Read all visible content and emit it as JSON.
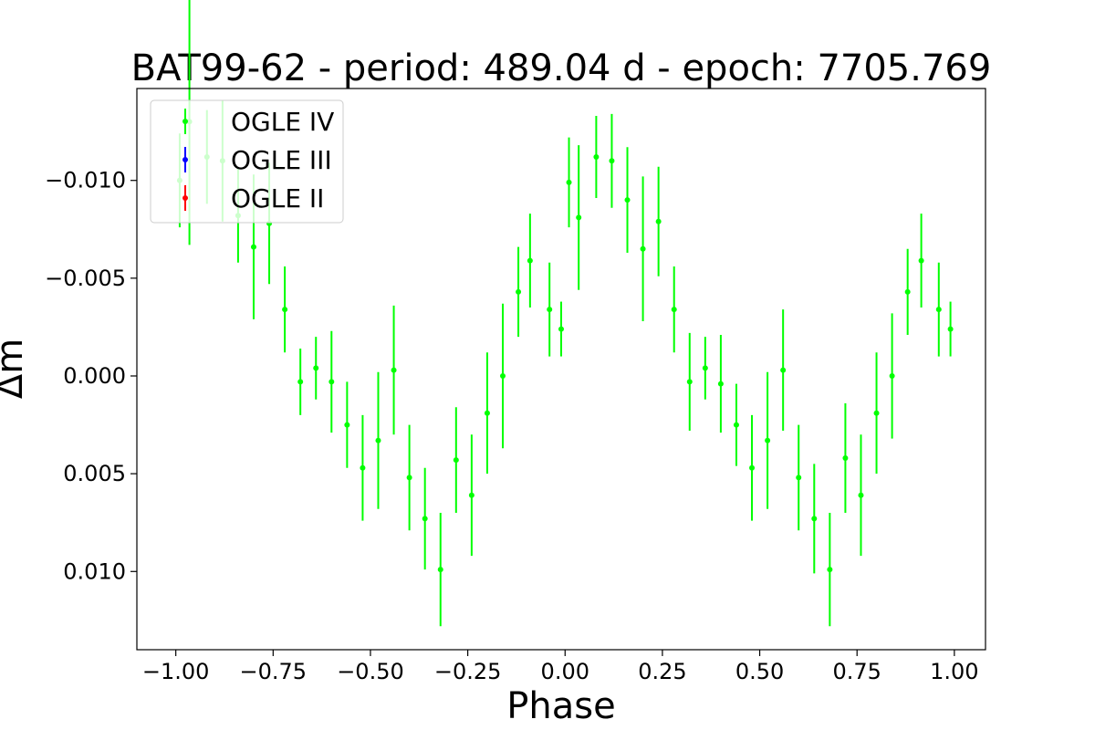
{
  "chart_data": {
    "type": "scatter",
    "title": "BAT99-62 - period: 489.04 d - epoch: 7705.769",
    "xlabel": "Phase",
    "ylabel": "Δm",
    "xlim": [
      -1.1,
      1.08
    ],
    "ylim": [
      0.014,
      -0.0147
    ],
    "y_inverted": true,
    "grid": false,
    "legend_position": "top-left",
    "xticks": [
      -1.0,
      -0.75,
      -0.5,
      -0.25,
      0.0,
      0.25,
      0.5,
      0.75,
      1.0
    ],
    "xtick_labels": [
      "−1.00",
      "−0.75",
      "−0.50",
      "−0.25",
      "0.00",
      "0.25",
      "0.50",
      "0.75",
      "1.00"
    ],
    "yticks": [
      -0.01,
      -0.005,
      0.0,
      0.005,
      0.01
    ],
    "ytick_labels": [
      "−0.010",
      "−0.005",
      "0.000",
      "0.005",
      "0.010"
    ],
    "series": [
      {
        "name": "OGLE IV",
        "color": "#00ff00",
        "x": [
          -0.99,
          -0.965,
          -0.92,
          -0.88,
          -0.84,
          -0.8,
          -0.76,
          -0.72,
          -0.68,
          -0.64,
          -0.6,
          -0.56,
          -0.52,
          -0.48,
          -0.44,
          -0.4,
          -0.36,
          -0.32,
          -0.28,
          -0.24,
          -0.2,
          -0.16,
          -0.12,
          -0.09,
          -0.04,
          -0.01,
          0.01,
          0.035,
          0.08,
          0.12,
          0.16,
          0.2,
          0.24,
          0.28,
          0.32,
          0.36,
          0.4,
          0.44,
          0.48,
          0.52,
          0.56,
          0.6,
          0.64,
          0.68,
          0.72,
          0.76,
          0.8,
          0.84,
          0.88,
          0.915,
          0.96,
          0.99
        ],
        "y": [
          -0.01,
          -0.013,
          -0.0112,
          -0.011,
          -0.0082,
          -0.0066,
          -0.0078,
          -0.0034,
          0.0003,
          -0.0004,
          0.0003,
          0.0025,
          0.0047,
          0.0033,
          -0.0003,
          0.0052,
          0.0073,
          0.0099,
          0.0043,
          0.0061,
          0.0019,
          0.0,
          -0.0043,
          -0.0059,
          -0.0034,
          -0.0024,
          -0.0099,
          -0.0081,
          -0.0112,
          -0.011,
          -0.009,
          -0.0065,
          -0.0079,
          -0.0034,
          0.0003,
          -0.0004,
          0.0004,
          0.0025,
          0.0047,
          0.0033,
          -0.0003,
          0.0052,
          0.0073,
          0.0099,
          0.0042,
          0.0061,
          0.0019,
          0.0,
          -0.0043,
          -0.0059,
          -0.0034,
          -0.0024
        ],
        "err": [
          0.0024,
          0.0063,
          0.0024,
          0.0031,
          0.0024,
          0.0037,
          0.0031,
          0.0022,
          0.0017,
          0.0016,
          0.0026,
          0.0022,
          0.0027,
          0.0035,
          0.0033,
          0.0027,
          0.0026,
          0.0029,
          0.0027,
          0.0031,
          0.0031,
          0.0037,
          0.0023,
          0.0024,
          0.0024,
          0.0014,
          0.0023,
          0.0037,
          0.0021,
          0.0024,
          0.0027,
          0.0037,
          0.0028,
          0.0022,
          0.0025,
          0.0016,
          0.0025,
          0.0021,
          0.0027,
          0.0035,
          0.0031,
          0.0027,
          0.0028,
          0.0029,
          0.0028,
          0.0031,
          0.0031,
          0.0032,
          0.0022,
          0.0024,
          0.0024,
          0.0014
        ]
      },
      {
        "name": "OGLE III",
        "color": "#0000ff",
        "x": [],
        "y": [],
        "err": []
      },
      {
        "name": "OGLE II",
        "color": "#ff0000",
        "x": [],
        "y": [],
        "err": []
      }
    ]
  }
}
